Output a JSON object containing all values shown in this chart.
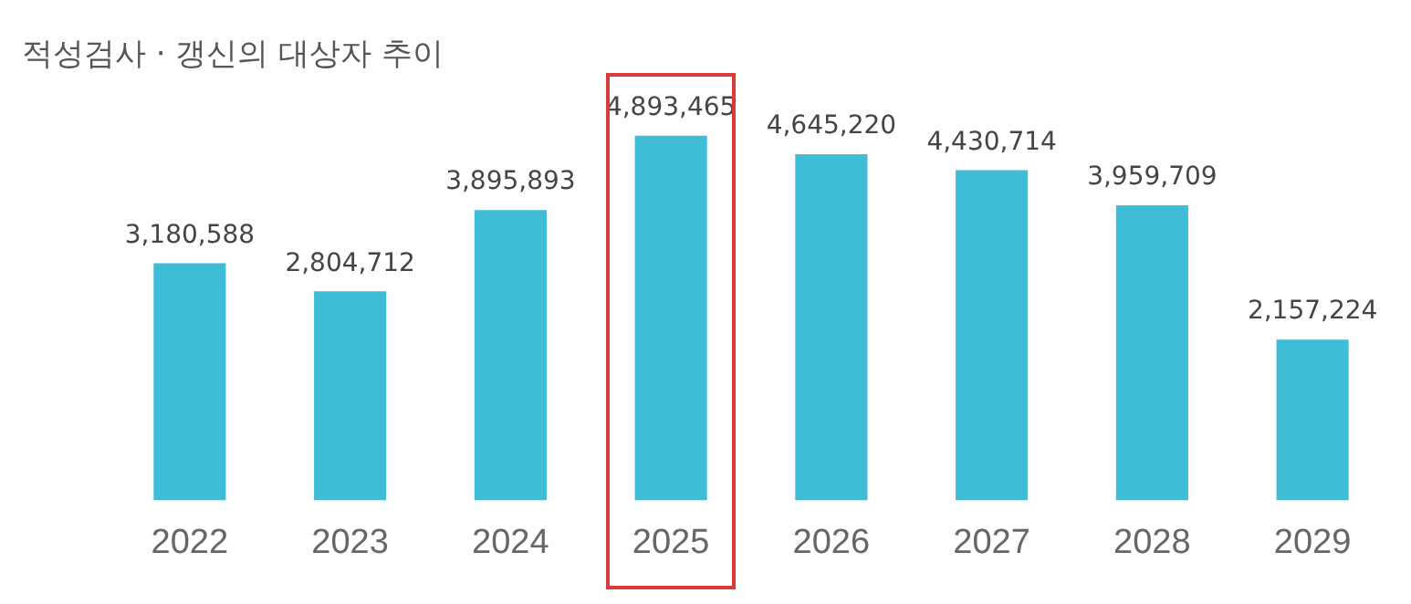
{
  "chart_data": {
    "type": "bar",
    "title": "적성검사 · 갱신의 대상자 추이",
    "categories": [
      "2022",
      "2023",
      "2024",
      "2025",
      "2026",
      "2027",
      "2028",
      "2029"
    ],
    "values": [
      3180588,
      2804712,
      3895893,
      4893465,
      4645220,
      4430714,
      3959709,
      2157224
    ],
    "color": "#3fbcd6",
    "data_labels": true,
    "value_labels": [
      "3,180,588",
      "2,804,712",
      "3,895,893",
      "4,893,465",
      "4,645,220",
      "4,430,714",
      "3,959,709",
      "2,157,224"
    ],
    "grid": false,
    "legend": false
  }
}
